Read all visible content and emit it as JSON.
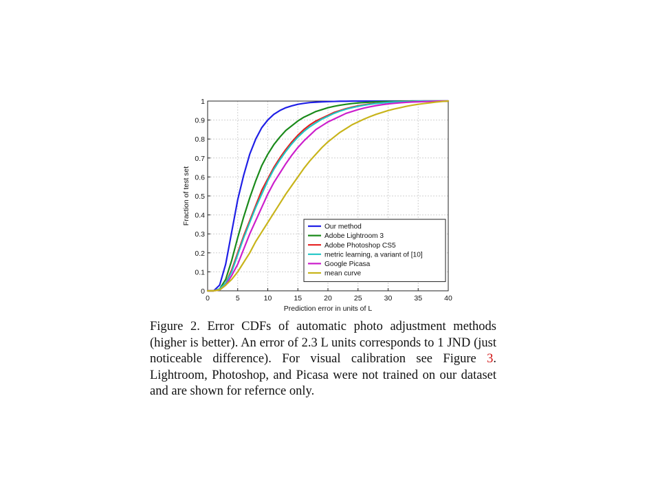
{
  "chart_data": {
    "type": "line",
    "xlabel": "Prediction error in units of L",
    "ylabel": "Fraction of test set",
    "xlim": [
      0,
      40
    ],
    "ylim": [
      0,
      1
    ],
    "xticks": [
      "0",
      "5",
      "10",
      "15",
      "20",
      "25",
      "30",
      "35",
      "40"
    ],
    "yticks": [
      "0",
      "0.1",
      "0.2",
      "0.3",
      "0.4",
      "0.5",
      "0.6",
      "0.7",
      "0.8",
      "0.9",
      "1"
    ],
    "grid": true,
    "legend_position": "lower-right",
    "x": [
      0,
      1,
      2,
      3,
      4,
      5,
      6,
      7,
      8,
      9,
      10,
      11,
      12,
      13,
      14,
      15,
      16,
      17,
      18,
      19,
      20,
      21,
      22,
      23,
      24,
      25,
      26,
      27,
      28,
      29,
      30,
      31,
      32,
      33,
      34,
      35,
      36,
      37,
      38,
      39,
      40
    ],
    "series": [
      {
        "name": "Our method",
        "color": "#1f1fe6",
        "values": [
          0,
          0,
          0.03,
          0.14,
          0.31,
          0.48,
          0.61,
          0.72,
          0.8,
          0.86,
          0.9,
          0.93,
          0.95,
          0.965,
          0.975,
          0.983,
          0.988,
          0.992,
          0.994,
          0.996,
          0.997,
          0.998,
          0.999,
          0.999,
          1,
          1,
          1,
          1,
          1,
          1,
          1,
          1,
          1,
          1,
          1,
          1,
          1,
          1,
          1,
          1,
          1
        ]
      },
      {
        "name": "Adobe Lightroom 3",
        "color": "#1a8a1a",
        "values": [
          0,
          0,
          0.01,
          0.06,
          0.16,
          0.28,
          0.39,
          0.49,
          0.58,
          0.66,
          0.72,
          0.77,
          0.81,
          0.845,
          0.87,
          0.895,
          0.915,
          0.93,
          0.945,
          0.955,
          0.965,
          0.972,
          0.978,
          0.983,
          0.987,
          0.99,
          0.992,
          0.994,
          0.996,
          0.997,
          0.998,
          0.998,
          0.999,
          0.999,
          1,
          1,
          1,
          1,
          1,
          1,
          1
        ]
      },
      {
        "name": "Adobe Photoshop CS5",
        "color": "#e61f1f",
        "values": [
          0,
          0,
          0.01,
          0.04,
          0.11,
          0.2,
          0.29,
          0.37,
          0.45,
          0.53,
          0.59,
          0.65,
          0.7,
          0.745,
          0.785,
          0.82,
          0.85,
          0.875,
          0.895,
          0.91,
          0.925,
          0.94,
          0.95,
          0.96,
          0.968,
          0.975,
          0.98,
          0.985,
          0.988,
          0.991,
          0.993,
          0.995,
          0.996,
          0.997,
          0.998,
          0.999,
          1,
          1,
          1,
          1,
          1
        ]
      },
      {
        "name": "metric learning, a variant of [10]",
        "color": "#1fc6c6",
        "values": [
          0,
          0,
          0.01,
          0.04,
          0.1,
          0.19,
          0.28,
          0.36,
          0.44,
          0.51,
          0.58,
          0.64,
          0.69,
          0.735,
          0.775,
          0.81,
          0.84,
          0.865,
          0.885,
          0.905,
          0.92,
          0.935,
          0.947,
          0.957,
          0.965,
          0.972,
          0.978,
          0.983,
          0.987,
          0.99,
          0.993,
          0.995,
          0.996,
          0.997,
          0.998,
          0.999,
          1,
          1,
          1,
          1,
          1
        ]
      },
      {
        "name": "Google Picasa",
        "color": "#cc1fcc",
        "values": [
          0,
          0,
          0.005,
          0.03,
          0.08,
          0.14,
          0.22,
          0.3,
          0.37,
          0.44,
          0.51,
          0.57,
          0.62,
          0.67,
          0.715,
          0.755,
          0.79,
          0.82,
          0.85,
          0.87,
          0.89,
          0.905,
          0.92,
          0.935,
          0.945,
          0.955,
          0.963,
          0.97,
          0.976,
          0.981,
          0.985,
          0.988,
          0.991,
          0.993,
          0.995,
          0.996,
          0.997,
          0.998,
          0.999,
          1,
          1
        ]
      },
      {
        "name": "mean curve",
        "color": "#c8b41a",
        "values": [
          0,
          0,
          0.005,
          0.03,
          0.06,
          0.1,
          0.15,
          0.2,
          0.26,
          0.31,
          0.36,
          0.41,
          0.46,
          0.51,
          0.555,
          0.6,
          0.645,
          0.685,
          0.72,
          0.755,
          0.785,
          0.81,
          0.835,
          0.855,
          0.875,
          0.89,
          0.905,
          0.918,
          0.93,
          0.94,
          0.95,
          0.958,
          0.965,
          0.972,
          0.978,
          0.983,
          0.987,
          0.991,
          0.995,
          0.998,
          1
        ]
      }
    ]
  },
  "caption": {
    "part1": "Figure 2. Error CDFs of automatic photo adjustment methods (higher is better). An error of 2.3 L units corresponds to 1 JND (just noticeable difference). For visual calibration see Figure ",
    "ref": "3",
    "part2": ". Lightroom, Photoshop, and Picasa were not trained on our dataset and are shown for refernce only."
  }
}
